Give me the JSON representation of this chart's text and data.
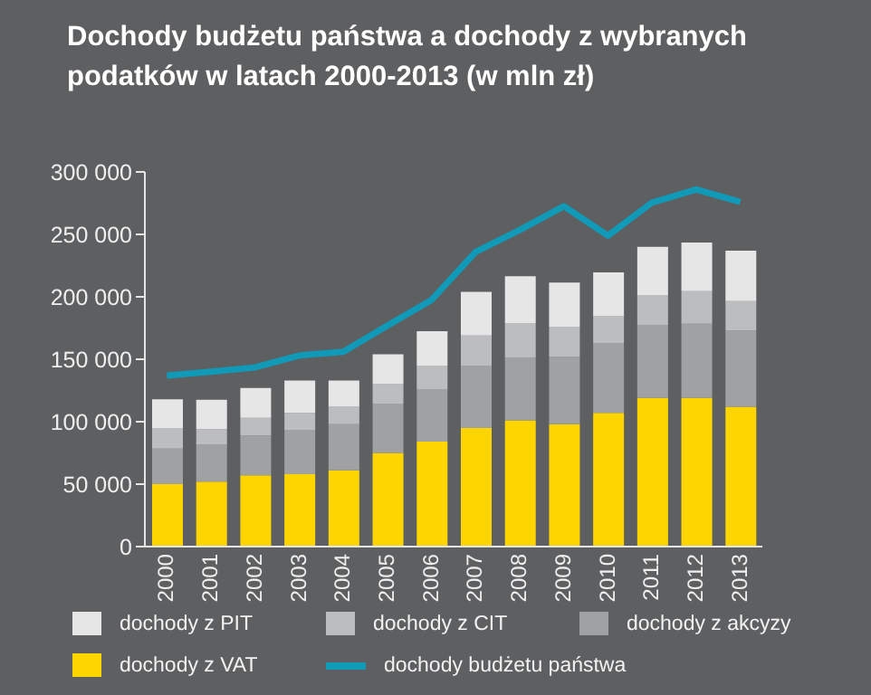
{
  "chart_data": {
    "type": "bar",
    "title": "Dochody budżetu państwa a dochody z wybranych podatków w latach 2000-2013 (w mln zł)",
    "categories": [
      "2000",
      "2001",
      "2002",
      "2003",
      "2004",
      "2005",
      "2006",
      "2007",
      "2008",
      "2009",
      "2010",
      "2011",
      "2012",
      "2013"
    ],
    "stacked": true,
    "series": [
      {
        "name": "dochody z VAT",
        "color": "#ffd500",
        "values": [
          50000,
          52000,
          57000,
          58000,
          61000,
          75000,
          84000,
          95000,
          101000,
          98000,
          107000,
          119000,
          119000,
          112000
        ]
      },
      {
        "name": "dochody z akcyzy",
        "color": "#a0a1a3",
        "values": [
          28500,
          29500,
          32000,
          35500,
          37000,
          39500,
          42000,
          49500,
          50000,
          54000,
          56000,
          58500,
          59500,
          61000
        ]
      },
      {
        "name": "dochody z CIT",
        "color": "#bcbdbf",
        "values": [
          16000,
          12500,
          14000,
          13500,
          14000,
          15500,
          19000,
          24500,
          28000,
          24000,
          21500,
          24000,
          26000,
          23500
        ]
      },
      {
        "name": "dochody z PIT",
        "color": "#e6e6e7",
        "values": [
          23500,
          23500,
          24000,
          26000,
          21000,
          24000,
          27500,
          35000,
          37500,
          35500,
          35000,
          38500,
          39000,
          40500
        ]
      },
      {
        "name": "dochody budżetu państwa",
        "type": "line",
        "color": "#1199b8",
        "values": [
          137000,
          140000,
          143500,
          153000,
          156000,
          177000,
          197500,
          236000,
          253500,
          272500,
          249000,
          275500,
          286000,
          276000
        ]
      }
    ],
    "ylim": [
      0,
      300000
    ],
    "yticks": [
      {
        "value": 0,
        "label": "0"
      },
      {
        "value": 50000,
        "label": "50 000"
      },
      {
        "value": 100000,
        "label": "100 000"
      },
      {
        "value": 150000,
        "label": "150 000"
      },
      {
        "value": 200000,
        "label": "200 000"
      },
      {
        "value": 250000,
        "label": "250 000"
      },
      {
        "value": 300000,
        "label": "300 000"
      }
    ],
    "grid": false,
    "legend": "bottom",
    "marker": "none"
  }
}
